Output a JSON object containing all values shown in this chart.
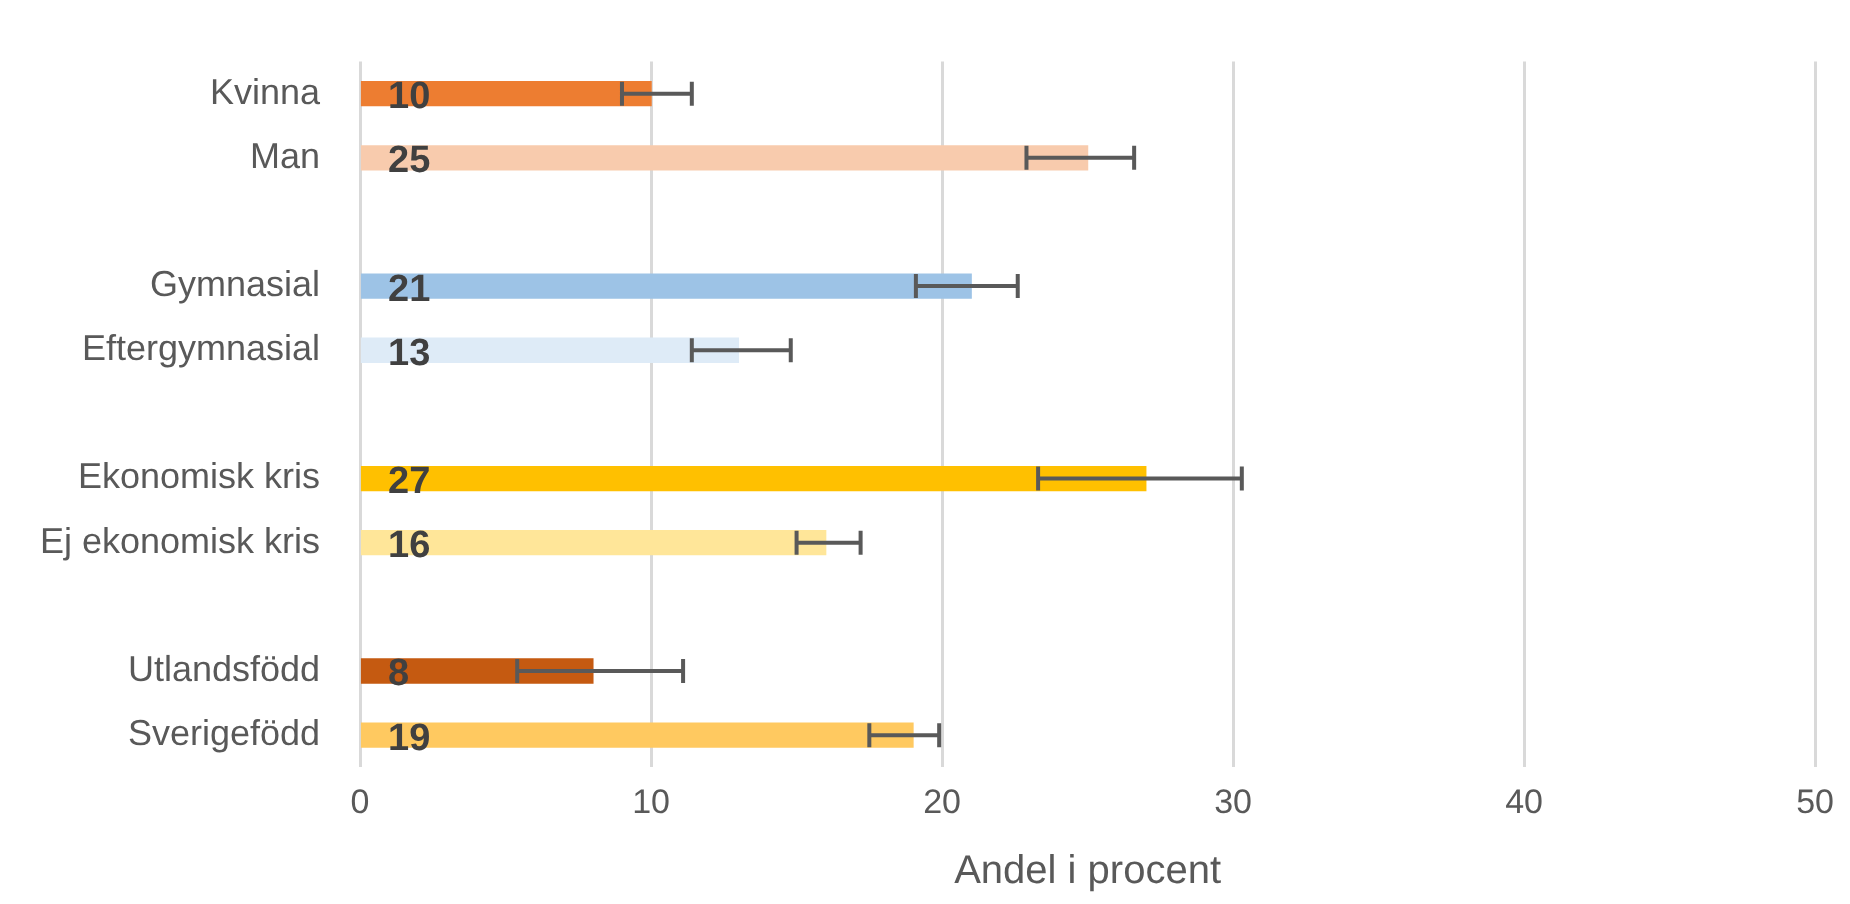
{
  "chart_data": {
    "type": "bar",
    "orientation": "horizontal",
    "xlabel": "Andel i procent",
    "categories": [
      "Kvinna",
      "Man",
      null,
      "Gymnasial",
      "Eftergymnasial",
      null,
      "Ekonomisk kris",
      "Ej ekonomisk kris",
      null,
      "Utlandsfödd",
      "Sverigefödd"
    ],
    "values": [
      10,
      25,
      null,
      21,
      13,
      null,
      27,
      16,
      null,
      8,
      19
    ],
    "colors": [
      "#ed7d31",
      "#f8cbad",
      null,
      "#9dc3e6",
      "#deebf7",
      null,
      "#ffc000",
      "#ffe699",
      null,
      "#c55a11",
      "#ffc960"
    ],
    "errors": [
      [
        9.0,
        11.4
      ],
      [
        22.9,
        26.6
      ],
      null,
      [
        19.1,
        22.6
      ],
      [
        11.4,
        14.8
      ],
      null,
      [
        23.3,
        30.3
      ],
      [
        15.0,
        17.2
      ],
      null,
      [
        5.4,
        11.1
      ],
      [
        17.5,
        19.9
      ]
    ],
    "xlim": [
      0,
      50
    ],
    "xticks": [
      0,
      10,
      20,
      30,
      40,
      50
    ],
    "grid": "x",
    "data_labels": true,
    "legend": false
  }
}
